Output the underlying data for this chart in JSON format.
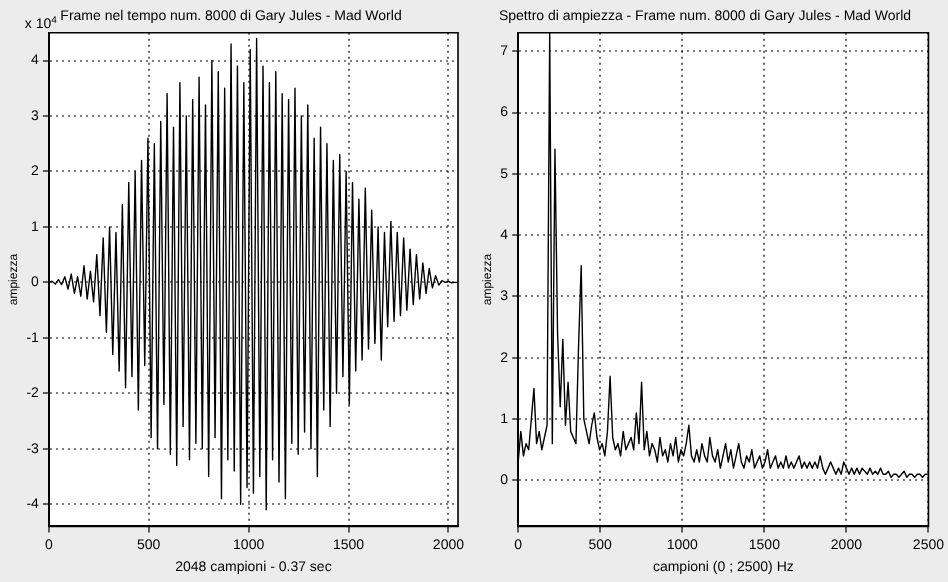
{
  "chart_data": [
    {
      "type": "line",
      "title": "Frame nel tempo num. 8000 di Gary Jules - Mad World",
      "xlabel": "2048 campioni - 0.37 sec",
      "ylabel": "ampiezza",
      "annotations": [
        "x 10$^{4}$"
      ],
      "x": [
        0,
        16,
        32,
        48,
        64,
        80,
        96,
        112,
        128,
        144,
        160,
        176,
        192,
        208,
        224,
        240,
        256,
        272,
        288,
        304,
        320,
        336,
        352,
        368,
        384,
        400,
        416,
        432,
        448,
        464,
        480,
        496,
        512,
        528,
        544,
        560,
        576,
        592,
        608,
        624,
        640,
        656,
        672,
        688,
        704,
        720,
        736,
        752,
        768,
        784,
        800,
        816,
        832,
        848,
        864,
        880,
        896,
        912,
        928,
        944,
        960,
        976,
        992,
        1008,
        1024,
        1040,
        1056,
        1072,
        1088,
        1104,
        1120,
        1136,
        1152,
        1168,
        1184,
        1200,
        1216,
        1232,
        1248,
        1264,
        1280,
        1296,
        1312,
        1328,
        1344,
        1360,
        1376,
        1392,
        1408,
        1424,
        1440,
        1456,
        1472,
        1488,
        1504,
        1520,
        1536,
        1552,
        1568,
        1584,
        1600,
        1616,
        1632,
        1648,
        1664,
        1680,
        1696,
        1712,
        1728,
        1744,
        1760,
        1776,
        1792,
        1808,
        1824,
        1840,
        1856,
        1872,
        1888,
        1904,
        1920,
        1936,
        1952,
        1968,
        1984,
        2000,
        2016,
        2032,
        2048
      ],
      "series": [
        {
          "color": "#000000",
          "values": [
            0,
            0.02,
            -0.03,
            0.05,
            -0.04,
            0.1,
            -0.12,
            0.15,
            -0.2,
            0.1,
            -0.25,
            0.3,
            -0.3,
            0.2,
            -0.35,
            0.5,
            -0.6,
            0.8,
            -0.9,
            1.0,
            -1.3,
            0.9,
            -1.6,
            1.4,
            -1.9,
            1.8,
            -1.7,
            2.0,
            -2.3,
            2.2,
            -1.5,
            2.6,
            -2.8,
            2.5,
            -3.0,
            2.9,
            -2.2,
            3.4,
            -3.1,
            2.8,
            -3.3,
            3.6,
            -2.6,
            3.0,
            -3.2,
            3.3,
            -2.9,
            3.7,
            -3.0,
            3.2,
            -3.5,
            4.0,
            -2.8,
            3.8,
            -3.9,
            3.5,
            -3.2,
            4.3,
            -3.4,
            3.9,
            -4.0,
            3.6,
            -3.7,
            4.2,
            -3.8,
            4.4,
            -3.5,
            3.9,
            -4.1,
            3.6,
            -3.2,
            3.8,
            -3.6,
            3.4,
            -3.9,
            3.3,
            -2.9,
            3.5,
            -3.1,
            3.0,
            -2.7,
            3.2,
            -3.0,
            2.6,
            -3.5,
            2.8,
            -2.3,
            2.5,
            -2.6,
            2.2,
            -2.0,
            2.3,
            -1.7,
            2.0,
            -2.2,
            1.8,
            -1.6,
            1.5,
            -1.4,
            1.7,
            -1.2,
            1.3,
            -1.1,
            1.0,
            -1.4,
            0.9,
            -0.8,
            1.1,
            -0.7,
            0.9,
            -0.6,
            0.8,
            -0.5,
            0.6,
            -0.4,
            0.5,
            -0.3,
            0.35,
            -0.2,
            0.25,
            -0.1,
            0.12,
            -0.05,
            0.03,
            0,
            0.02,
            -0.01,
            0,
            0
          ]
        }
      ],
      "xlim": [
        0,
        2048
      ],
      "xticks": [
        0,
        500,
        1000,
        1500,
        2000
      ],
      "ylim": [
        -4.4,
        4.5
      ],
      "yticks": [
        -4,
        -3,
        -2,
        -1,
        0,
        1,
        2,
        3,
        4
      ],
      "grid": true,
      "legend": false,
      "marker": "none",
      "line_style": "solid"
    },
    {
      "type": "line",
      "title": "Spettro di ampiezza - Frame num. 8000 di Gary Jules - Mad World",
      "xlabel": "campioni (0 ; 2500) Hz",
      "ylabel": "ampiezza",
      "x": [
        0,
        16,
        32,
        48,
        64,
        80,
        96,
        112,
        128,
        144,
        160,
        176,
        192,
        208,
        224,
        240,
        256,
        272,
        288,
        304,
        320,
        336,
        352,
        368,
        384,
        400,
        416,
        432,
        448,
        464,
        480,
        496,
        512,
        528,
        544,
        560,
        576,
        592,
        608,
        624,
        640,
        656,
        672,
        688,
        704,
        720,
        736,
        752,
        768,
        784,
        800,
        816,
        832,
        848,
        864,
        880,
        896,
        912,
        928,
        944,
        960,
        976,
        992,
        1008,
        1024,
        1040,
        1056,
        1072,
        1088,
        1104,
        1120,
        1136,
        1152,
        1168,
        1184,
        1200,
        1216,
        1232,
        1248,
        1264,
        1280,
        1296,
        1312,
        1328,
        1344,
        1360,
        1376,
        1392,
        1408,
        1424,
        1440,
        1456,
        1472,
        1488,
        1504,
        1520,
        1536,
        1552,
        1568,
        1584,
        1600,
        1616,
        1632,
        1648,
        1664,
        1680,
        1696,
        1712,
        1728,
        1744,
        1760,
        1776,
        1792,
        1808,
        1824,
        1840,
        1856,
        1872,
        1888,
        1904,
        1920,
        1936,
        1952,
        1968,
        1984,
        2000,
        2016,
        2032,
        2048,
        2064,
        2080,
        2096,
        2112,
        2128,
        2144,
        2160,
        2176,
        2192,
        2208,
        2224,
        2240,
        2256,
        2272,
        2288,
        2304,
        2320,
        2336,
        2352,
        2368,
        2384,
        2400,
        2416,
        2432,
        2448,
        2464,
        2480,
        2496
      ],
      "series": [
        {
          "color": "#000000",
          "values": [
            0.3,
            0.8,
            0.4,
            0.6,
            0.5,
            1.0,
            1.5,
            0.6,
            0.8,
            0.5,
            0.7,
            0.9,
            7.3,
            0.6,
            5.4,
            2.4,
            1.2,
            2.3,
            0.9,
            1.6,
            0.8,
            0.7,
            0.6,
            2.2,
            3.5,
            1.0,
            0.8,
            0.6,
            0.9,
            1.1,
            0.7,
            0.5,
            0.6,
            0.4,
            0.8,
            1.7,
            0.7,
            0.5,
            0.6,
            0.4,
            0.8,
            0.5,
            0.6,
            0.7,
            0.5,
            1.1,
            0.6,
            1.6,
            0.5,
            0.8,
            0.4,
            0.6,
            0.5,
            0.3,
            0.7,
            0.4,
            0.5,
            0.3,
            0.6,
            0.4,
            0.7,
            0.3,
            0.5,
            0.4,
            0.6,
            0.9,
            0.4,
            0.3,
            0.5,
            0.3,
            0.6,
            0.4,
            0.3,
            0.7,
            0.4,
            0.3,
            0.5,
            0.2,
            0.4,
            0.6,
            0.3,
            0.5,
            0.2,
            0.4,
            0.6,
            0.3,
            0.2,
            0.4,
            0.3,
            0.5,
            0.2,
            0.3,
            0.4,
            0.2,
            0.3,
            0.5,
            0.2,
            0.3,
            0.4,
            0.2,
            0.3,
            0.2,
            0.4,
            0.2,
            0.3,
            0.2,
            0.3,
            0.4,
            0.2,
            0.3,
            0.2,
            0.3,
            0.2,
            0.3,
            0.2,
            0.4,
            0.2,
            0.1,
            0.2,
            0.3,
            0.2,
            0.1,
            0.2,
            0.1,
            0.3,
            0.2,
            0.1,
            0.2,
            0.1,
            0.2,
            0.1,
            0.2,
            0.15,
            0.1,
            0.2,
            0.1,
            0.15,
            0.1,
            0.2,
            0.1,
            0.1,
            0.15,
            0.05,
            0.1,
            0.1,
            0.05,
            0.1,
            0.15,
            0.05,
            0.1,
            0.1,
            0.05,
            0.1,
            0.1,
            0.05,
            0.1,
            0.1
          ]
        }
      ],
      "xlim": [
        0,
        2500
      ],
      "xticks": [
        0,
        500,
        1000,
        1500,
        2000,
        2500
      ],
      "ylim": [
        -0.75,
        7.3
      ],
      "yticks": [
        0,
        1,
        2,
        3,
        4,
        5,
        6,
        7
      ],
      "grid": true,
      "legend": false,
      "marker": "none",
      "line_style": "solid"
    }
  ]
}
